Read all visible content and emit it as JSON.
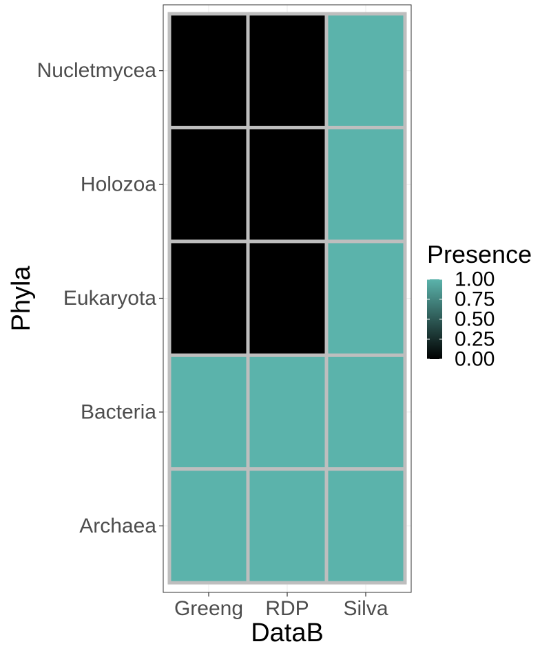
{
  "chart_data": {
    "type": "heatmap",
    "title": "",
    "xlabel": "DataB",
    "ylabel": "Phyla",
    "x_categories": [
      "Greeng",
      "RDP",
      "Silva"
    ],
    "y_categories": [
      "Archaea",
      "Bacteria",
      "Eukaryota",
      "Holozoa",
      "Nucletmycea"
    ],
    "values": [
      {
        "x": "Greeng",
        "y": "Archaea",
        "value": 1
      },
      {
        "x": "RDP",
        "y": "Archaea",
        "value": 1
      },
      {
        "x": "Silva",
        "y": "Archaea",
        "value": 1
      },
      {
        "x": "Greeng",
        "y": "Bacteria",
        "value": 1
      },
      {
        "x": "RDP",
        "y": "Bacteria",
        "value": 1
      },
      {
        "x": "Silva",
        "y": "Bacteria",
        "value": 1
      },
      {
        "x": "Greeng",
        "y": "Eukaryota",
        "value": 0
      },
      {
        "x": "RDP",
        "y": "Eukaryota",
        "value": 0
      },
      {
        "x": "Silva",
        "y": "Eukaryota",
        "value": 1
      },
      {
        "x": "Greeng",
        "y": "Holozoa",
        "value": 0
      },
      {
        "x": "RDP",
        "y": "Holozoa",
        "value": 0
      },
      {
        "x": "Silva",
        "y": "Holozoa",
        "value": 1
      },
      {
        "x": "Greeng",
        "y": "Nucletmycea",
        "value": 0
      },
      {
        "x": "RDP",
        "y": "Nucletmycea",
        "value": 0
      },
      {
        "x": "Silva",
        "y": "Nucletmycea",
        "value": 1
      }
    ],
    "legend": {
      "title": "Presence",
      "placement": "right",
      "breaks": [
        "1.00",
        "0.75",
        "0.50",
        "0.25",
        "0.00"
      ],
      "range": [
        0,
        1
      ]
    },
    "colors": {
      "low": "#000000",
      "high": "#5bb3ab",
      "tile_border": "#bebebe",
      "panel_border": "#333333",
      "grid": "#ebebeb",
      "axis_text": "#4d4d4d",
      "title_text": "#000000"
    },
    "grid": true
  }
}
